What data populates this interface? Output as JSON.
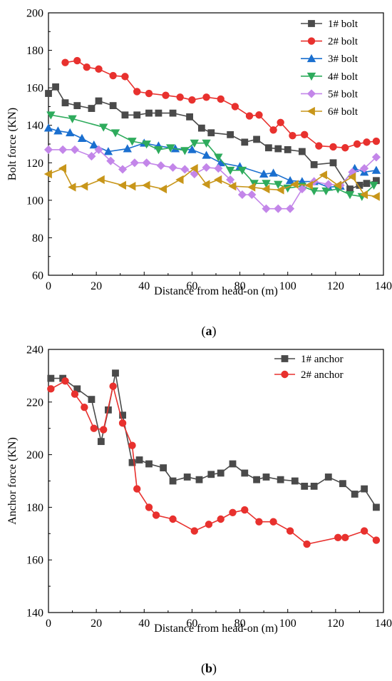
{
  "chart_data": [
    {
      "type": "line",
      "panel_label": "a",
      "xlabel": "Distance from head-on (m)",
      "ylabel": "Bolt force (KN)",
      "xlim": [
        0,
        140
      ],
      "ylim": [
        60,
        200
      ],
      "xticks": [
        0,
        20,
        40,
        60,
        80,
        100,
        120,
        140
      ],
      "yticks": [
        60,
        80,
        100,
        120,
        140,
        160,
        180,
        200
      ],
      "grid": false,
      "legend_position": "top-right",
      "series": [
        {
          "name": "1# bolt",
          "color": "#4a4a4a",
          "marker": "square",
          "x": [
            0,
            3,
            7,
            12,
            18,
            21,
            27,
            32,
            37,
            42,
            46,
            52,
            59,
            64,
            68,
            76,
            82,
            87,
            92,
            96,
            100,
            106,
            111,
            119,
            126,
            130,
            133,
            137
          ],
          "y": [
            157,
            160.5,
            152,
            150.5,
            149,
            153,
            150.5,
            145.5,
            145.5,
            146.5,
            146.5,
            146.5,
            144.5,
            138.5,
            136,
            135,
            131,
            132.5,
            128,
            127.5,
            127,
            126,
            119,
            120,
            106,
            108,
            109,
            110.5
          ]
        },
        {
          "name": "2# bolt",
          "color": "#e8312e",
          "marker": "circle",
          "x": [
            7,
            12,
            16,
            21,
            27,
            32,
            37,
            42,
            49,
            55,
            60,
            66,
            72,
            78,
            84,
            88,
            94,
            97,
            102,
            107,
            113,
            119,
            124,
            129,
            133,
            137
          ],
          "y": [
            173.5,
            174.5,
            171,
            170,
            166.5,
            166,
            158,
            157,
            156,
            155,
            153.5,
            155,
            154,
            150,
            145,
            145.5,
            137.5,
            141.5,
            134.5,
            135,
            129,
            128.5,
            128,
            130,
            131,
            131.5
          ]
        },
        {
          "name": "3# bolt",
          "color": "#1a6fcf",
          "marker": "triangle-up",
          "x": [
            0,
            4,
            9,
            14,
            19,
            25,
            33,
            40,
            46,
            53,
            60,
            66,
            72,
            80,
            90,
            94,
            101,
            106,
            111,
            117,
            122,
            128,
            132,
            137
          ],
          "y": [
            138.5,
            137,
            136,
            133,
            129.5,
            126,
            127.5,
            130.5,
            129,
            127.5,
            127,
            124,
            120,
            118,
            114,
            114.5,
            110.5,
            110,
            110,
            107,
            107.5,
            117,
            115,
            116
          ]
        },
        {
          "name": "4# bolt",
          "color": "#2eab5c",
          "marker": "triangle-down",
          "x": [
            1,
            10,
            23,
            28,
            35,
            41,
            46,
            51,
            57,
            61,
            66,
            71,
            76,
            81,
            86,
            91,
            96,
            100,
            106,
            111,
            116,
            121,
            126,
            131,
            136
          ],
          "y": [
            145.5,
            143.5,
            139,
            136,
            131.5,
            130,
            127,
            128,
            126.5,
            130.5,
            130.5,
            123,
            116,
            116,
            109,
            109,
            108.5,
            106.5,
            107.5,
            105,
            105,
            106,
            103,
            102,
            108
          ]
        },
        {
          "name": "5# bolt",
          "color": "#c386e9",
          "marker": "diamond",
          "x": [
            0,
            6,
            11,
            18,
            21,
            26,
            31,
            36,
            41,
            47,
            52,
            57,
            61,
            66,
            71,
            76,
            81,
            85,
            91,
            96,
            101,
            106,
            111,
            117,
            122,
            127,
            132,
            137
          ],
          "y": [
            127,
            127,
            127,
            123.5,
            127,
            121,
            116.5,
            120,
            120,
            118.5,
            117.5,
            116.5,
            114,
            117.5,
            117,
            111,
            103,
            103,
            95.5,
            95.5,
            95.5,
            106,
            110,
            108.5,
            108,
            115,
            117,
            123
          ]
        },
        {
          "name": "6# bolt",
          "color": "#c8961a",
          "marker": "triangle-left",
          "x": [
            0,
            6,
            10,
            15,
            22,
            31,
            35,
            41,
            48,
            55,
            61,
            66,
            71,
            77,
            85,
            91,
            97,
            103,
            109,
            115,
            121,
            127,
            132,
            137
          ],
          "y": [
            114,
            117,
            107,
            107.5,
            111,
            108,
            107.5,
            108,
            106,
            111,
            117,
            108.5,
            111,
            107.5,
            107,
            106,
            105.5,
            108.5,
            108,
            113.5,
            108,
            112.5,
            103,
            102
          ]
        }
      ]
    },
    {
      "type": "line",
      "panel_label": "b",
      "xlabel": "Distance from head-on (m)",
      "ylabel": "Anchor force (KN)",
      "xlim": [
        0,
        140
      ],
      "ylim": [
        140,
        240
      ],
      "xticks": [
        0,
        20,
        40,
        60,
        80,
        100,
        120,
        140
      ],
      "yticks": [
        140,
        160,
        180,
        200,
        220,
        240
      ],
      "grid": false,
      "legend_position": "top-right",
      "series": [
        {
          "name": "1# anchor",
          "color": "#4a4a4a",
          "marker": "square",
          "x": [
            1,
            6,
            12,
            18,
            22,
            25,
            28,
            31,
            35,
            38,
            42,
            48,
            52,
            58,
            63,
            68,
            72,
            77,
            82,
            87,
            91,
            97,
            103,
            107,
            111,
            117,
            123,
            128,
            132,
            137
          ],
          "y": [
            229,
            229,
            225,
            221,
            205,
            217,
            231,
            215,
            197,
            198,
            196.5,
            195,
            190,
            191.5,
            190.5,
            192.5,
            193,
            196.5,
            193,
            190.5,
            191.5,
            190.5,
            190,
            188,
            188,
            191.5,
            189,
            185,
            187,
            180
          ]
        },
        {
          "name": "2# anchor",
          "color": "#e8312e",
          "marker": "circle",
          "x": [
            1,
            7,
            11,
            15,
            19,
            23,
            27,
            31,
            35,
            37,
            42,
            45,
            52,
            61,
            67,
            72,
            77,
            82,
            88,
            94,
            101,
            108,
            121,
            124,
            132,
            137
          ],
          "y": [
            225,
            228,
            223,
            218,
            210,
            209.5,
            226,
            212,
            203.5,
            187,
            180,
            177,
            175.5,
            171,
            173.5,
            175.5,
            178,
            179,
            174.5,
            174.5,
            171,
            166,
            168.5,
            168.5,
            171,
            167.5
          ]
        }
      ]
    }
  ]
}
